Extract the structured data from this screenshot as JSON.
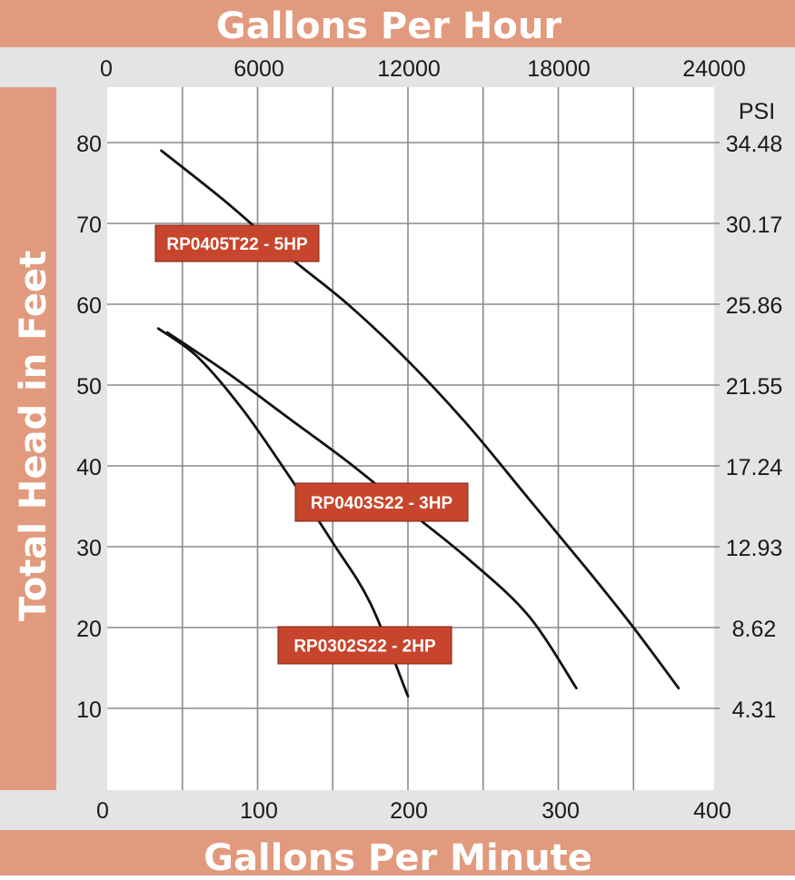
{
  "colors": {
    "banner": "#e19a7d",
    "panel": "#e3e4e5",
    "plot": "#ffffff",
    "grid": "#8a8a8a",
    "curve": "#111111",
    "label_bg": "#c8452d",
    "label_text": "#ffffff"
  },
  "chart_data": {
    "type": "line",
    "title": "Gallons Per Hour",
    "xlabel": "Gallons Per Minute",
    "ylabel": "Total Head in Feet",
    "y2label": "PSI",
    "xlim": [
      0,
      400
    ],
    "ylim": [
      0,
      87
    ],
    "x_ticks": [
      0,
      100,
      200,
      300,
      400
    ],
    "x_top_ticks": [
      0,
      6000,
      12000,
      18000,
      24000
    ],
    "y_ticks": [
      10,
      20,
      30,
      40,
      50,
      60,
      70,
      80
    ],
    "y2_ticks": [
      "4.31",
      "8.62",
      "12.93",
      "17.24",
      "21.55",
      "25.86",
      "30.17",
      "34.48"
    ],
    "grid": true,
    "series": [
      {
        "name": "RP0405T22 - 5HP",
        "points": [
          [
            36,
            79
          ],
          [
            80,
            72.5
          ],
          [
            120,
            66
          ],
          [
            160,
            60
          ],
          [
            200,
            53
          ],
          [
            240,
            45
          ],
          [
            280,
            36
          ],
          [
            320,
            27
          ],
          [
            350,
            20
          ],
          [
            380,
            12.5
          ]
        ]
      },
      {
        "name": "RP0403S22 - 3HP",
        "points": [
          [
            40,
            56.5
          ],
          [
            80,
            51.5
          ],
          [
            120,
            46
          ],
          [
            160,
            40.5
          ],
          [
            200,
            34.5
          ],
          [
            240,
            28.5
          ],
          [
            280,
            21.5
          ],
          [
            312,
            12.5
          ]
        ]
      },
      {
        "name": "RP0302S22 - 2HP",
        "points": [
          [
            34,
            57
          ],
          [
            60,
            53.5
          ],
          [
            90,
            47
          ],
          [
            120,
            39
          ],
          [
            150,
            30.5
          ],
          [
            175,
            23
          ],
          [
            200,
            11.5
          ]
        ]
      }
    ]
  }
}
